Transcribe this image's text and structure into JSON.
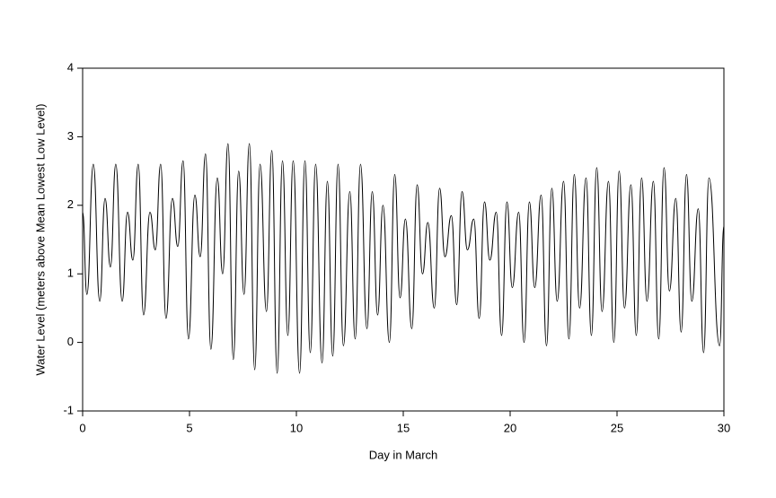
{
  "chart_data": {
    "type": "line",
    "xlabel": "Day in March",
    "ylabel": "Water Level (meters above Mean Lowest Low Level)",
    "xlim": [
      0,
      30
    ],
    "xticks": [
      0,
      5,
      10,
      15,
      20,
      25,
      30
    ],
    "ylim": [
      -1,
      4
    ],
    "yticks": [
      -1,
      0,
      1,
      2,
      3,
      4
    ],
    "grid": false,
    "series": [
      {
        "name": "Water Level",
        "color": "#000000",
        "x": [
          0,
          0.2,
          0.5,
          0.8,
          1.05,
          1.3,
          1.55,
          1.85,
          2.1,
          2.35,
          2.6,
          2.85,
          3.15,
          3.4,
          3.65,
          3.9,
          4.2,
          4.45,
          4.7,
          4.95,
          5.25,
          5.5,
          5.75,
          6.0,
          6.3,
          6.55,
          6.8,
          7.05,
          7.3,
          7.55,
          7.8,
          8.05,
          8.3,
          8.6,
          8.85,
          9.1,
          9.35,
          9.6,
          9.85,
          10.15,
          10.4,
          10.65,
          10.9,
          11.2,
          11.45,
          11.7,
          11.95,
          12.2,
          12.5,
          12.75,
          13.0,
          13.3,
          13.55,
          13.8,
          14.05,
          14.35,
          14.6,
          14.85,
          15.1,
          15.4,
          15.65,
          15.9,
          16.15,
          16.45,
          16.7,
          16.95,
          17.25,
          17.5,
          17.75,
          18.0,
          18.3,
          18.55,
          18.8,
          19.05,
          19.35,
          19.6,
          19.85,
          20.1,
          20.4,
          20.65,
          20.9,
          21.15,
          21.45,
          21.7,
          21.95,
          22.2,
          22.5,
          22.75,
          23.0,
          23.25,
          23.55,
          23.8,
          24.05,
          24.3,
          24.6,
          24.85,
          25.1,
          25.35,
          25.65,
          25.9,
          26.15,
          26.4,
          26.7,
          26.95,
          27.2,
          27.45,
          27.75,
          28.0,
          28.25,
          28.5,
          28.8,
          29.05,
          29.3,
          29.8,
          30.0
        ],
        "values": [
          1.9,
          0.7,
          2.6,
          0.6,
          2.1,
          1.1,
          2.6,
          0.6,
          1.9,
          1.2,
          2.6,
          0.4,
          1.9,
          1.35,
          2.6,
          0.35,
          2.1,
          1.4,
          2.65,
          0.05,
          2.15,
          1.25,
          2.75,
          -0.1,
          2.4,
          1.0,
          2.9,
          -0.25,
          2.5,
          0.7,
          2.9,
          -0.4,
          2.6,
          0.45,
          2.8,
          -0.45,
          2.65,
          0.1,
          2.65,
          -0.45,
          2.65,
          -0.15,
          2.6,
          -0.3,
          2.35,
          -0.2,
          2.6,
          -0.05,
          2.2,
          0.05,
          2.6,
          0.2,
          2.2,
          0.4,
          2.0,
          0.0,
          2.45,
          0.65,
          1.8,
          0.2,
          2.3,
          1.0,
          1.75,
          0.5,
          2.25,
          1.25,
          1.85,
          0.55,
          2.2,
          1.35,
          1.8,
          0.35,
          2.05,
          1.2,
          1.9,
          0.1,
          2.05,
          0.8,
          1.9,
          0.0,
          2.05,
          0.8,
          2.15,
          -0.05,
          2.25,
          0.6,
          2.35,
          0.05,
          2.45,
          0.5,
          2.4,
          0.1,
          2.55,
          0.45,
          2.35,
          0.0,
          2.5,
          0.5,
          2.3,
          0.1,
          2.4,
          0.6,
          2.35,
          0.05,
          2.55,
          0.75,
          2.1,
          0.15,
          2.45,
          0.6,
          1.95,
          -0.15,
          2.4,
          -0.05,
          1.7
        ]
      }
    ]
  }
}
